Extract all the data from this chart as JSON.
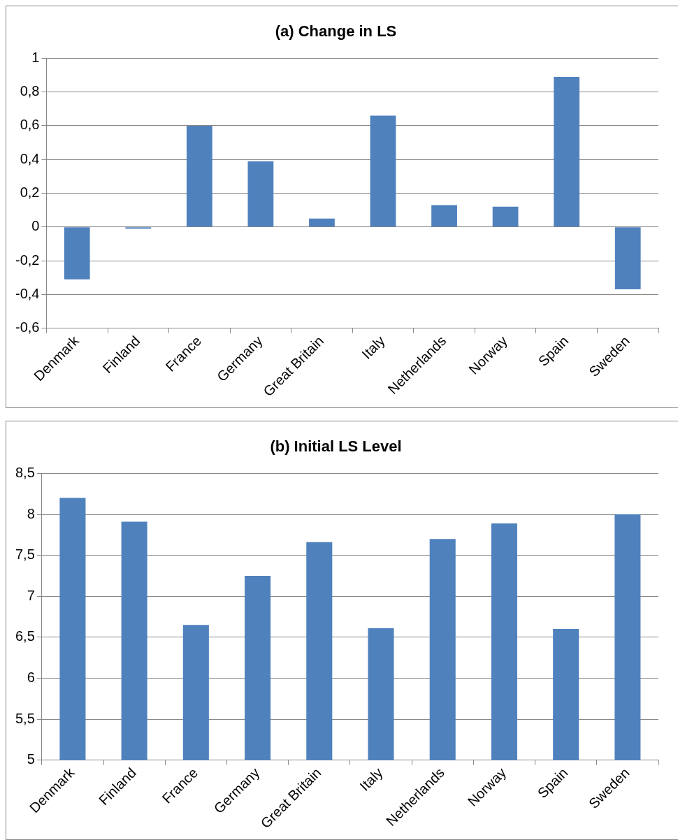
{
  "chart_data": [
    {
      "type": "bar",
      "title": "(a) Change in LS",
      "categories": [
        "Denmark",
        "Finland",
        "France",
        "Germany",
        "Great Britain",
        "Italy",
        "Netherlands",
        "Norway",
        "Spain",
        "Sweden"
      ],
      "values": [
        -0.31,
        -0.01,
        0.6,
        0.39,
        0.05,
        0.66,
        0.13,
        0.12,
        0.89,
        -0.37
      ],
      "color": "#4f81bd",
      "ylim": [
        -0.6,
        1
      ],
      "yticks": [
        {
          "value": -0.6,
          "label": "-0,6"
        },
        {
          "value": -0.4,
          "label": "-0,4"
        },
        {
          "value": -0.2,
          "label": "-0,2"
        },
        0,
        {
          "value": 0.2,
          "label": "0,2"
        },
        {
          "value": 0.4,
          "label": "0,4"
        },
        {
          "value": 0.6,
          "label": "0,6"
        },
        {
          "value": 0.8,
          "label": "0,8"
        },
        1
      ],
      "grid": "y",
      "legend": false
    },
    {
      "type": "bar",
      "title": "(b) Initial LS Level",
      "categories": [
        "Denmark",
        "Finland",
        "France",
        "Germany",
        "Great Britain",
        "Italy",
        "Netherlands",
        "Norway",
        "Spain",
        "Sweden"
      ],
      "values": [
        8.2,
        7.91,
        6.65,
        7.25,
        7.66,
        6.61,
        7.7,
        7.89,
        6.6,
        8.0
      ],
      "color": "#4f81bd",
      "ylim": [
        5,
        8.5
      ],
      "yticks": [
        5,
        {
          "value": 5.5,
          "label": "5,5"
        },
        6,
        {
          "value": 6.5,
          "label": "6,5"
        },
        7,
        {
          "value": 7.5,
          "label": "7,5"
        },
        8,
        {
          "value": 8.5,
          "label": "8,5"
        }
      ],
      "grid": "y",
      "legend": false
    }
  ]
}
